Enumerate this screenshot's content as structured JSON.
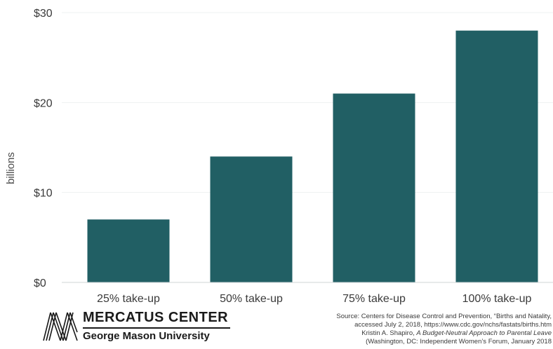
{
  "chart_data": {
    "type": "bar",
    "categories": [
      "25% take-up",
      "50% take-up",
      "75% take-up",
      "100% take-up"
    ],
    "values": [
      7,
      14,
      21,
      28
    ],
    "ylabel": "billions",
    "yticks": [
      "$0",
      "$10",
      "$20",
      "$30"
    ],
    "ytick_values": [
      0,
      10,
      20,
      30
    ],
    "ylim": [
      0,
      30
    ],
    "grid": true,
    "bar_color": "#215f64"
  },
  "logo": {
    "name": "MERCATUS CENTER",
    "sub": "George Mason University"
  },
  "source": {
    "line1": "Source: Centers for Disease Control and Prevention, “Births and Natality,",
    "line2": "accessed July 2, 2018, https://www.cdc.gov/nchs/fastats/births.htm",
    "line3_pre": "Kristin A. Shapiro, ",
    "line3_italic": "A Budget-Neutral Approach to Parental Leave",
    "line4": "(Washington, DC: Independent Women’s Forum, January 2018"
  }
}
